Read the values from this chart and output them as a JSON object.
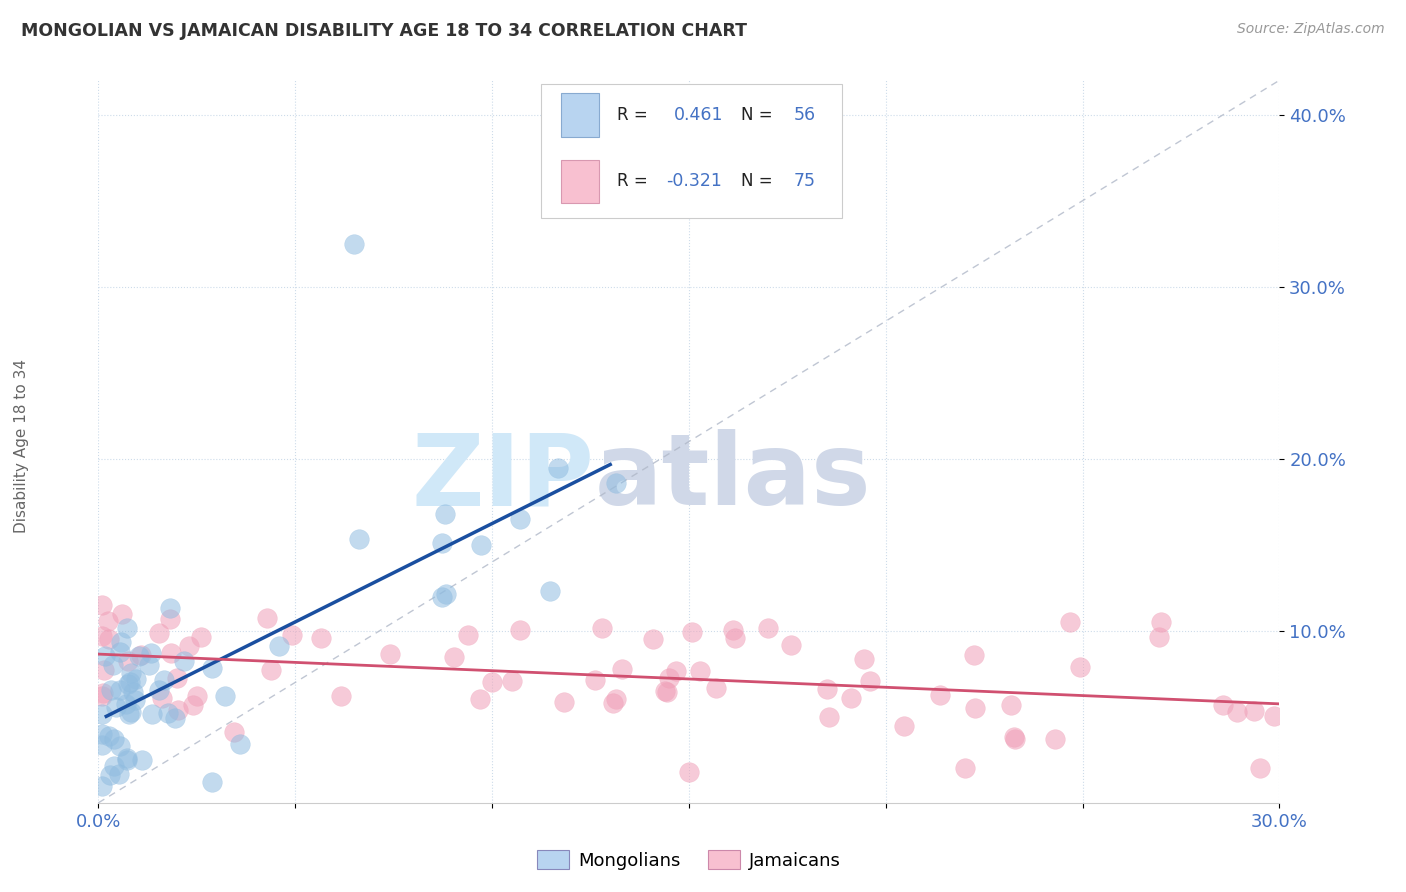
{
  "title": "MONGOLIAN VS JAMAICAN DISABILITY AGE 18 TO 34 CORRELATION CHART",
  "source": "Source: ZipAtlas.com",
  "ylabel": "Disability Age 18 to 34",
  "xlim": [
    0.0,
    0.3
  ],
  "ylim": [
    0.0,
    0.42
  ],
  "mongolian_R": 0.461,
  "mongolian_N": 56,
  "jamaican_R": -0.321,
  "jamaican_N": 75,
  "blue_scatter_color": "#90bce0",
  "blue_line_color": "#1a4fa0",
  "pink_scatter_color": "#f0a0b8",
  "pink_line_color": "#d05070",
  "legend_color": "#4472c4",
  "legend_R_black": "#333333",
  "tick_color": "#4472c4",
  "grid_color": "#c8d8e8",
  "diag_color": "#b0b8c8",
  "watermark_zip_color": "#d0e8f8",
  "watermark_atlas_color": "#d0d8e8"
}
